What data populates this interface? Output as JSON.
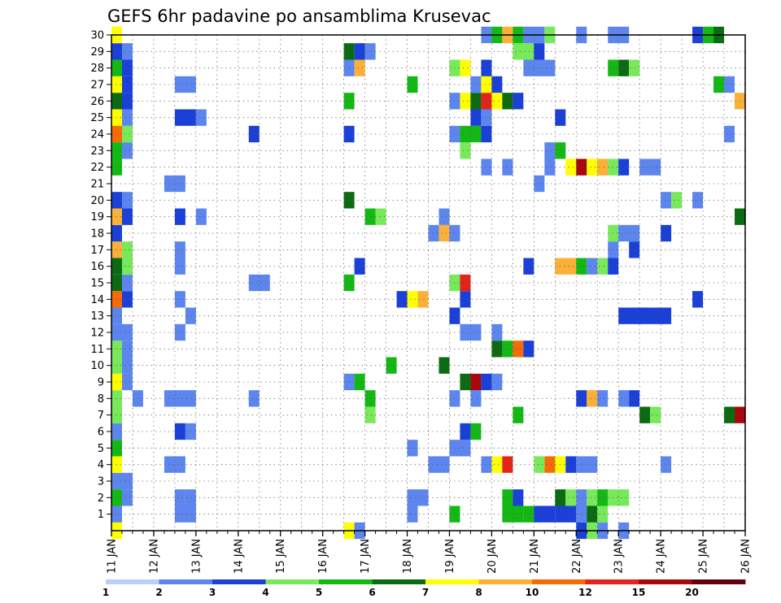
{
  "chart_data": {
    "type": "heatmap",
    "title": "GEFS 6hr padavine po ansamblima Krusevac",
    "xlabel": "",
    "ylabel": "",
    "x_tick_labels": [
      "11 JAN",
      "12 JAN",
      "13 JAN",
      "14 JAN",
      "15 JAN",
      "16 JAN",
      "17 JAN",
      "18 JAN",
      "19 JAN",
      "20 JAN",
      "21 JAN",
      "22 JAN",
      "23 JAN",
      "24 JAN",
      "25 JAN",
      "26 JAN"
    ],
    "x_range_days": [
      11,
      26
    ],
    "y_tick_labels": [
      "1",
      "2",
      "3",
      "4",
      "5",
      "6",
      "7",
      "8",
      "9",
      "10",
      "11",
      "12",
      "13",
      "14",
      "15",
      "16",
      "17",
      "18",
      "19",
      "20",
      "21",
      "22",
      "23",
      "24",
      "25",
      "26",
      "27",
      "28",
      "29",
      "30"
    ],
    "y_range": [
      0,
      30
    ],
    "grid": true,
    "colorbar": {
      "tick_labels": [
        "1",
        "2",
        "3",
        "4",
        "5",
        "6",
        "7",
        "8",
        "10",
        "12",
        "15",
        "20"
      ],
      "colors": [
        "#bccff6",
        "#5c86ee",
        "#1a40d8",
        "#78e95a",
        "#14b814",
        "#0b6b13",
        "#ffff00",
        "#fbb038",
        "#f66a08",
        "#e5231a",
        "#a8070d",
        "#640010"
      ]
    },
    "cells_note": "each cell: [member, start_day, span_days, color_level_index]",
    "cells": [
      [
        0,
        11.0,
        0.25,
        6
      ],
      [
        0,
        16.5,
        0.25,
        6
      ],
      [
        0,
        16.75,
        0.25,
        1
      ],
      [
        0,
        22.0,
        0.25,
        2
      ],
      [
        0,
        22.25,
        0.25,
        3
      ],
      [
        0,
        22.5,
        0.25,
        1
      ],
      [
        0,
        23.0,
        0.25,
        1
      ],
      [
        1,
        11.0,
        0.25,
        1
      ],
      [
        1,
        12.5,
        0.5,
        1
      ],
      [
        1,
        18.0,
        0.25,
        1
      ],
      [
        1,
        19.0,
        0.25,
        4
      ],
      [
        1,
        20.25,
        0.5,
        4
      ],
      [
        1,
        20.75,
        0.25,
        4
      ],
      [
        1,
        21.0,
        0.5,
        2
      ],
      [
        1,
        21.5,
        0.5,
        2
      ],
      [
        1,
        22.0,
        0.25,
        1
      ],
      [
        1,
        22.25,
        0.25,
        5
      ],
      [
        1,
        22.5,
        0.25,
        3
      ],
      [
        2,
        11.0,
        0.25,
        4
      ],
      [
        2,
        11.25,
        0.25,
        1
      ],
      [
        2,
        12.5,
        0.25,
        1
      ],
      [
        2,
        12.75,
        0.25,
        1
      ],
      [
        2,
        18.0,
        0.5,
        1
      ],
      [
        2,
        20.25,
        0.25,
        4
      ],
      [
        2,
        20.5,
        0.25,
        2
      ],
      [
        2,
        21.5,
        0.25,
        5
      ],
      [
        2,
        21.75,
        0.25,
        3
      ],
      [
        2,
        22.0,
        0.25,
        1
      ],
      [
        2,
        22.25,
        0.25,
        3
      ],
      [
        2,
        22.5,
        0.25,
        4
      ],
      [
        2,
        22.75,
        0.5,
        3
      ],
      [
        3,
        11.0,
        0.5,
        1
      ],
      [
        4,
        11.0,
        0.25,
        6
      ],
      [
        4,
        12.25,
        0.5,
        1
      ],
      [
        4,
        18.5,
        0.5,
        1
      ],
      [
        4,
        19.75,
        0.25,
        1
      ],
      [
        4,
        20.0,
        0.25,
        6
      ],
      [
        4,
        20.25,
        0.25,
        9
      ],
      [
        4,
        21.0,
        0.25,
        3
      ],
      [
        4,
        21.25,
        0.25,
        8
      ],
      [
        4,
        21.5,
        0.25,
        6
      ],
      [
        4,
        21.75,
        0.25,
        2
      ],
      [
        4,
        22.0,
        0.5,
        1
      ],
      [
        4,
        24.0,
        0.25,
        1
      ],
      [
        5,
        11.0,
        0.25,
        4
      ],
      [
        5,
        18.0,
        0.25,
        1
      ],
      [
        5,
        19.0,
        0.5,
        1
      ],
      [
        6,
        11.0,
        0.25,
        1
      ],
      [
        6,
        12.5,
        0.25,
        2
      ],
      [
        6,
        12.75,
        0.25,
        1
      ],
      [
        6,
        19.25,
        0.25,
        2
      ],
      [
        6,
        19.5,
        0.25,
        4
      ],
      [
        7,
        11.0,
        0.25,
        3
      ],
      [
        7,
        17.0,
        0.25,
        3
      ],
      [
        7,
        20.5,
        0.25,
        4
      ],
      [
        7,
        23.5,
        0.25,
        5
      ],
      [
        7,
        23.75,
        0.25,
        3
      ],
      [
        7,
        25.5,
        0.25,
        5
      ],
      [
        7,
        25.75,
        0.25,
        10
      ],
      [
        8,
        11.0,
        0.25,
        3
      ],
      [
        8,
        11.5,
        0.25,
        1
      ],
      [
        8,
        12.25,
        0.75,
        1
      ],
      [
        8,
        14.25,
        0.25,
        1
      ],
      [
        8,
        17.0,
        0.25,
        4
      ],
      [
        8,
        19.0,
        0.25,
        1
      ],
      [
        8,
        19.5,
        0.25,
        1
      ],
      [
        8,
        22.0,
        0.25,
        2
      ],
      [
        8,
        22.25,
        0.25,
        7
      ],
      [
        8,
        22.5,
        0.25,
        1
      ],
      [
        8,
        23.0,
        0.25,
        1
      ],
      [
        8,
        23.25,
        0.25,
        2
      ],
      [
        9,
        11.0,
        0.25,
        6
      ],
      [
        9,
        11.25,
        0.25,
        1
      ],
      [
        9,
        16.5,
        0.25,
        1
      ],
      [
        9,
        16.75,
        0.25,
        4
      ],
      [
        9,
        19.25,
        0.25,
        5
      ],
      [
        9,
        19.5,
        0.25,
        10
      ],
      [
        9,
        19.75,
        0.25,
        2
      ],
      [
        9,
        20.0,
        0.25,
        1
      ],
      [
        10,
        11.0,
        0.25,
        3
      ],
      [
        10,
        11.25,
        0.25,
        1
      ],
      [
        10,
        17.5,
        0.25,
        4
      ],
      [
        10,
        18.75,
        0.25,
        5
      ],
      [
        11,
        11.0,
        0.25,
        3
      ],
      [
        11,
        11.25,
        0.25,
        1
      ],
      [
        11,
        20.0,
        0.25,
        5
      ],
      [
        11,
        20.25,
        0.25,
        4
      ],
      [
        11,
        20.5,
        0.25,
        8
      ],
      [
        11,
        20.75,
        0.25,
        2
      ],
      [
        12,
        11.0,
        0.5,
        1
      ],
      [
        12,
        12.5,
        0.25,
        1
      ],
      [
        12,
        19.25,
        0.5,
        1
      ],
      [
        12,
        20.0,
        0.25,
        1
      ],
      [
        13,
        11.0,
        0.25,
        1
      ],
      [
        13,
        12.75,
        0.25,
        1
      ],
      [
        13,
        19.0,
        0.25,
        2
      ],
      [
        13,
        23.0,
        1.25,
        2
      ],
      [
        14,
        11.0,
        0.25,
        8
      ],
      [
        14,
        11.25,
        0.25,
        2
      ],
      [
        14,
        12.5,
        0.25,
        1
      ],
      [
        14,
        17.75,
        0.25,
        2
      ],
      [
        14,
        18.0,
        0.25,
        6
      ],
      [
        14,
        18.25,
        0.25,
        7
      ],
      [
        14,
        19.25,
        0.25,
        2
      ],
      [
        14,
        24.75,
        0.25,
        2
      ],
      [
        15,
        11.0,
        0.25,
        5
      ],
      [
        15,
        11.25,
        0.25,
        1
      ],
      [
        15,
        14.25,
        0.5,
        1
      ],
      [
        15,
        16.5,
        0.25,
        4
      ],
      [
        15,
        19.0,
        0.25,
        3
      ],
      [
        15,
        19.25,
        0.25,
        9
      ],
      [
        16,
        11.0,
        0.25,
        5
      ],
      [
        16,
        11.25,
        0.25,
        3
      ],
      [
        16,
        12.5,
        0.25,
        1
      ],
      [
        16,
        16.75,
        0.25,
        2
      ],
      [
        16,
        20.75,
        0.25,
        2
      ],
      [
        16,
        21.5,
        0.5,
        7
      ],
      [
        16,
        22.0,
        0.25,
        4
      ],
      [
        16,
        22.25,
        0.25,
        1
      ],
      [
        16,
        22.5,
        0.25,
        3
      ],
      [
        16,
        22.75,
        0.25,
        2
      ],
      [
        17,
        11.0,
        0.25,
        7
      ],
      [
        17,
        11.25,
        0.25,
        3
      ],
      [
        17,
        12.5,
        0.25,
        1
      ],
      [
        17,
        22.75,
        0.25,
        1
      ],
      [
        17,
        23.25,
        0.25,
        2
      ],
      [
        18,
        11.0,
        0.25,
        2
      ],
      [
        18,
        18.5,
        0.25,
        1
      ],
      [
        18,
        18.75,
        0.25,
        7
      ],
      [
        18,
        19.0,
        0.25,
        1
      ],
      [
        18,
        22.75,
        0.25,
        3
      ],
      [
        18,
        23.0,
        0.5,
        1
      ],
      [
        18,
        24.0,
        0.25,
        2
      ],
      [
        19,
        11.0,
        0.25,
        7
      ],
      [
        19,
        11.25,
        0.25,
        2
      ],
      [
        19,
        12.5,
        0.25,
        2
      ],
      [
        19,
        13.0,
        0.25,
        1
      ],
      [
        19,
        17.0,
        0.25,
        4
      ],
      [
        19,
        17.25,
        0.25,
        3
      ],
      [
        19,
        18.75,
        0.25,
        1
      ],
      [
        19,
        25.75,
        0.25,
        5
      ],
      [
        20,
        11.0,
        0.25,
        2
      ],
      [
        20,
        11.25,
        0.25,
        1
      ],
      [
        20,
        16.5,
        0.25,
        5
      ],
      [
        20,
        24.0,
        0.25,
        1
      ],
      [
        20,
        24.25,
        0.25,
        3
      ],
      [
        20,
        24.75,
        0.25,
        1
      ],
      [
        21,
        12.25,
        0.5,
        1
      ],
      [
        21,
        21.0,
        0.25,
        1
      ],
      [
        22,
        11.0,
        0.25,
        4
      ],
      [
        22,
        19.75,
        0.25,
        1
      ],
      [
        22,
        20.25,
        0.25,
        1
      ],
      [
        22,
        21.25,
        0.25,
        1
      ],
      [
        22,
        21.75,
        0.25,
        6
      ],
      [
        22,
        22.0,
        0.25,
        10
      ],
      [
        22,
        22.25,
        0.25,
        6
      ],
      [
        22,
        22.5,
        0.25,
        7
      ],
      [
        22,
        22.75,
        0.25,
        3
      ],
      [
        22,
        23.0,
        0.25,
        2
      ],
      [
        22,
        23.5,
        0.5,
        1
      ],
      [
        23,
        11.0,
        0.25,
        4
      ],
      [
        23,
        11.25,
        0.25,
        1
      ],
      [
        23,
        19.25,
        0.25,
        3
      ],
      [
        23,
        21.25,
        0.25,
        1
      ],
      [
        23,
        21.5,
        0.25,
        4
      ],
      [
        24,
        11.0,
        0.25,
        8
      ],
      [
        24,
        11.25,
        0.25,
        3
      ],
      [
        24,
        14.25,
        0.25,
        2
      ],
      [
        24,
        16.5,
        0.25,
        2
      ],
      [
        24,
        19.0,
        0.25,
        1
      ],
      [
        24,
        19.25,
        0.5,
        4
      ],
      [
        24,
        19.75,
        0.25,
        2
      ],
      [
        24,
        25.5,
        0.25,
        1
      ],
      [
        25,
        11.0,
        0.25,
        6
      ],
      [
        25,
        11.25,
        0.25,
        1
      ],
      [
        25,
        12.5,
        0.5,
        2
      ],
      [
        25,
        13.0,
        0.25,
        1
      ],
      [
        25,
        19.5,
        0.25,
        2
      ],
      [
        25,
        19.75,
        0.25,
        1
      ],
      [
        25,
        21.5,
        0.25,
        2
      ],
      [
        26,
        11.0,
        0.25,
        5
      ],
      [
        26,
        11.25,
        0.25,
        2
      ],
      [
        26,
        16.5,
        0.25,
        4
      ],
      [
        26,
        19.0,
        0.25,
        1
      ],
      [
        26,
        19.25,
        0.25,
        6
      ],
      [
        26,
        19.5,
        0.25,
        5
      ],
      [
        26,
        19.75,
        0.25,
        9
      ],
      [
        26,
        20.0,
        0.25,
        6
      ],
      [
        26,
        20.25,
        0.25,
        5
      ],
      [
        26,
        20.5,
        0.25,
        2
      ],
      [
        26,
        25.75,
        0.25,
        7
      ],
      [
        27,
        11.0,
        0.25,
        6
      ],
      [
        27,
        11.25,
        0.25,
        2
      ],
      [
        27,
        12.5,
        0.5,
        1
      ],
      [
        27,
        18.0,
        0.25,
        4
      ],
      [
        27,
        19.5,
        0.25,
        1
      ],
      [
        27,
        19.75,
        0.25,
        6
      ],
      [
        27,
        20.0,
        0.25,
        2
      ],
      [
        27,
        25.25,
        0.25,
        4
      ],
      [
        27,
        25.5,
        0.25,
        1
      ],
      [
        28,
        11.0,
        0.25,
        4
      ],
      [
        28,
        11.25,
        0.25,
        2
      ],
      [
        28,
        16.5,
        0.25,
        1
      ],
      [
        28,
        16.75,
        0.25,
        7
      ],
      [
        28,
        19.0,
        0.25,
        3
      ],
      [
        28,
        19.25,
        0.25,
        6
      ],
      [
        28,
        19.75,
        0.25,
        2
      ],
      [
        28,
        20.75,
        0.75,
        1
      ],
      [
        28,
        22.75,
        0.25,
        4
      ],
      [
        28,
        23.0,
        0.25,
        5
      ],
      [
        28,
        23.25,
        0.25,
        3
      ],
      [
        29,
        11.0,
        0.25,
        2
      ],
      [
        29,
        11.25,
        0.25,
        1
      ],
      [
        29,
        16.5,
        0.25,
        5
      ],
      [
        29,
        16.75,
        0.25,
        2
      ],
      [
        29,
        17.0,
        0.25,
        1
      ],
      [
        29,
        20.5,
        0.5,
        3
      ],
      [
        29,
        21.0,
        0.25,
        2
      ],
      [
        30,
        11.0,
        0.25,
        6
      ],
      [
        30,
        19.75,
        0.25,
        1
      ],
      [
        30,
        20.0,
        0.25,
        4
      ],
      [
        30,
        20.25,
        0.25,
        7
      ],
      [
        30,
        20.5,
        0.25,
        4
      ],
      [
        30,
        20.75,
        0.5,
        1
      ],
      [
        30,
        21.25,
        0.25,
        3
      ],
      [
        30,
        22.0,
        0.25,
        1
      ],
      [
        30,
        22.75,
        0.5,
        1
      ],
      [
        30,
        24.75,
        0.25,
        2
      ],
      [
        30,
        25.0,
        0.25,
        4
      ],
      [
        30,
        25.25,
        0.25,
        5
      ]
    ]
  }
}
